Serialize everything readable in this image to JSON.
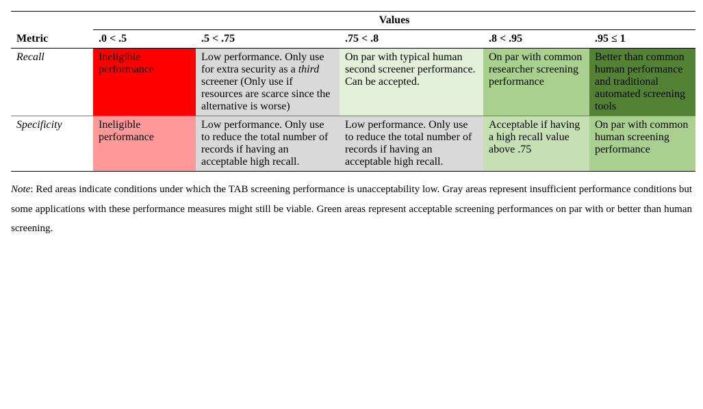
{
  "table": {
    "values_header": "Values",
    "metric_header": "Metric",
    "col_headers": [
      ".0 < .5",
      ".5 < .75",
      ".75 < .8",
      ".8 < .95",
      ".95 ≤ 1"
    ],
    "col_widths": [
      "120px",
      "150px",
      "210px",
      "210px",
      "155px",
      "155px"
    ],
    "rows": [
      {
        "metric": "Recall",
        "cells": [
          {
            "text": "Ineligible performance",
            "bg": "#ff0000"
          },
          {
            "html": "Low performance. Only use for extra security as a <span class=\"italic-third\">third</span> screener (Only use if resources are scarce since the alternative is worse)",
            "bg": "#d9d9d9"
          },
          {
            "text": "On par with typical human second screener performance. Can be accepted.",
            "bg": "#e2efda"
          },
          {
            "text": "On par with common researcher screening performance",
            "bg": "#a9d08e"
          },
          {
            "text": "Better than common human performance and traditional automated screening tools",
            "bg": "#548235"
          }
        ]
      },
      {
        "metric": "Specificity",
        "cells": [
          {
            "text": "Ineligible performance",
            "bg": "#ff9999"
          },
          {
            "text": "Low performance. Only use to reduce the total number of records if having an acceptable high recall.",
            "bg": "#d9d9d9"
          },
          {
            "text": "Low performance. Only use to reduce the total number of records if having an acceptable high recall.",
            "bg": "#d9d9d9"
          },
          {
            "text": "Acceptable if having a high recall value above .75",
            "bg": "#c6e0b4"
          },
          {
            "text": "On par with common human screening performance",
            "bg": "#a9d08e"
          }
        ]
      }
    ]
  },
  "note": {
    "label": "Note",
    "text": ": Red areas indicate conditions under which the TAB screening performance is unacceptability low. Gray areas represent insufficient performance conditions but some applications with these performance measures might still be viable. Green areas represent acceptable screening performances on par with or better than human screening."
  }
}
